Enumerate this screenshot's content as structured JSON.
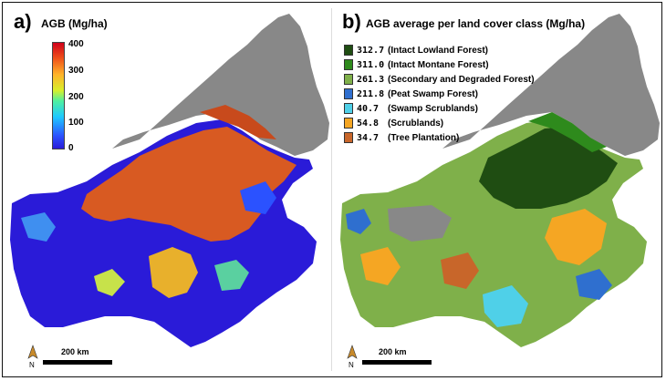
{
  "panel_a": {
    "letter": "a)",
    "title": "AGB (Mg/ha)",
    "colorbar_ticks": [
      "400",
      "300",
      "200",
      "100",
      "0"
    ],
    "scale_label": "200 km",
    "north_label": "N"
  },
  "panel_b": {
    "letter": "b)",
    "title": "AGB average per land cover class (Mg/ha)",
    "legend": [
      {
        "value": "312.7",
        "name": "(Intact Lowland Forest)",
        "color": "#1f4d12"
      },
      {
        "value": "311.0",
        "name": "(Intact Montane Forest)",
        "color": "#2e8a1c"
      },
      {
        "value": "261.3",
        "name": "(Secondary and Degraded Forest)",
        "color": "#7fb04a"
      },
      {
        "value": "211.8",
        "name": "(Peat Swamp Forest)",
        "color": "#2f6fcf"
      },
      {
        "value": "40.7",
        "name": "(Swamp Scrublands)",
        "color": "#4fd0e8"
      },
      {
        "value": "54.8",
        "name": "(Scrublands)",
        "color": "#f5a623"
      },
      {
        "value": "34.7",
        "name": "(Tree Plantation)",
        "color": "#c8662a"
      }
    ],
    "scale_label": "200 km",
    "north_label": "N"
  },
  "colors": {
    "land_gray": "#888888",
    "agb_low": "#2a1bd8",
    "agb_high": "#d0001a"
  }
}
